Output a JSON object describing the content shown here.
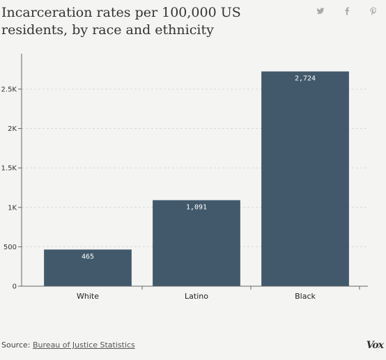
{
  "header": {
    "title": "Incarceration rates per 100,000 US residents, by race and ethnicity",
    "share_icons": [
      "twitter-icon",
      "facebook-icon",
      "pinterest-icon"
    ]
  },
  "footer": {
    "source_prefix": "Source:",
    "source_link": "Bureau of Justice Statistics",
    "logo": "Vox"
  },
  "colors": {
    "bar": "#41596b",
    "background": "#f4f4f3",
    "grid": "#d8d8d8",
    "axis": "#666666"
  },
  "chart_data": {
    "type": "bar",
    "title": "Incarceration rates per 100,000 US residents, by race and ethnicity",
    "xlabel": "",
    "ylabel": "",
    "categories": [
      "White",
      "Latino",
      "Black"
    ],
    "values": [
      465,
      1091,
      2724
    ],
    "value_labels": [
      "465",
      "1,091",
      "2,724"
    ],
    "ylim": [
      0,
      2950
    ],
    "yticks": [
      0,
      500,
      1000,
      1500,
      2000,
      2500
    ],
    "ytick_labels": [
      "0",
      "500",
      "1K",
      "1.5K",
      "2K",
      "2.5K"
    ],
    "grid": true
  }
}
